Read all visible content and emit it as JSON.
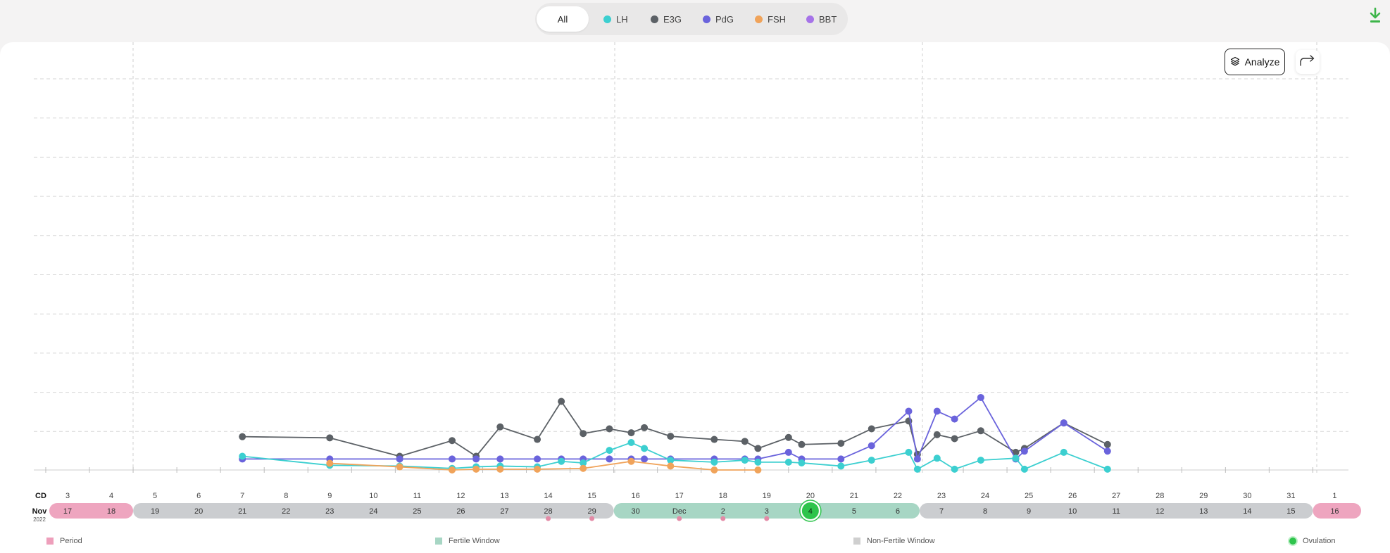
{
  "filters": [
    {
      "label": "All",
      "color": null,
      "selected": true
    },
    {
      "label": "LH",
      "color": "#3ccfd0"
    },
    {
      "label": "E3G",
      "color": "#5c6166"
    },
    {
      "label": "PdG",
      "color": "#6a63dc"
    },
    {
      "label": "FSH",
      "color": "#f0a35a"
    },
    {
      "label": "BBT",
      "color": "#a673e8"
    }
  ],
  "toolbar": {
    "analyze_label": "Analyze"
  },
  "icons": {
    "download": "download-icon",
    "analyze": "layers-icon",
    "share": "share-icon"
  },
  "legend": [
    {
      "label": "Period",
      "color": "#ee9fbb"
    },
    {
      "label": "Fertile Window",
      "color": "#a7d6c4"
    },
    {
      "label": "Non-Fertile Window",
      "color": "#cfcfcf"
    },
    {
      "label": "Ovulation",
      "color": "#2ec44c"
    }
  ],
  "chart_data": {
    "type": "line",
    "cycle_label": "CD",
    "month_label": "Nov",
    "year_label": "2022",
    "cycle_days": [
      "3",
      "4",
      "5",
      "6",
      "7",
      "8",
      "9",
      "10",
      "11",
      "12",
      "13",
      "14",
      "15",
      "16",
      "17",
      "18",
      "19",
      "20",
      "21",
      "22",
      "23",
      "24",
      "25",
      "26",
      "27",
      "28",
      "29",
      "30",
      "31",
      "1"
    ],
    "date_labels": [
      "17",
      "18",
      "19",
      "20",
      "21",
      "22",
      "23",
      "24",
      "25",
      "26",
      "27",
      "28",
      "29",
      "30",
      "Dec",
      "2",
      "3",
      "4",
      "5",
      "6",
      "7",
      "8",
      "9",
      "10",
      "11",
      "12",
      "13",
      "14",
      "15",
      "16"
    ],
    "date_phases": [
      "period",
      "period",
      "nonfertile",
      "nonfertile",
      "nonfertile",
      "nonfertile",
      "nonfertile",
      "nonfertile",
      "nonfertile",
      "nonfertile",
      "nonfertile",
      "nonfertile",
      "nonfertile",
      "fertile",
      "fertile",
      "fertile",
      "fertile",
      "fertile",
      "fertile",
      "fertile",
      "nonfertile",
      "nonfertile",
      "nonfertile",
      "nonfertile",
      "nonfertile",
      "nonfertile",
      "nonfertile",
      "nonfertile",
      "nonfertile",
      "period"
    ],
    "ovulation_index": 17,
    "markers": [
      11,
      12,
      14,
      15,
      16
    ],
    "x_range": [
      0,
      29
    ],
    "y_range": [
      0,
      10
    ],
    "grid": true,
    "series": [
      {
        "name": "E3G",
        "color": "#5c6166",
        "points": [
          [
            4,
            0.85
          ],
          [
            6,
            0.82
          ],
          [
            7.6,
            0.35
          ],
          [
            8.8,
            0.75
          ],
          [
            9.35,
            0.35
          ],
          [
            9.9,
            1.1
          ],
          [
            10.75,
            0.78
          ],
          [
            11.3,
            1.75
          ],
          [
            11.8,
            0.93
          ],
          [
            12.4,
            1.05
          ],
          [
            12.9,
            0.95
          ],
          [
            13.2,
            1.08
          ],
          [
            13.8,
            0.86
          ],
          [
            14.8,
            0.78
          ],
          [
            15.5,
            0.73
          ],
          [
            15.8,
            0.55
          ],
          [
            16.5,
            0.83
          ],
          [
            16.8,
            0.65
          ],
          [
            17.7,
            0.68
          ],
          [
            18.4,
            1.05
          ],
          [
            19.25,
            1.25
          ],
          [
            19.45,
            0.4
          ],
          [
            19.9,
            0.9
          ],
          [
            20.3,
            0.8
          ],
          [
            20.9,
            1.0
          ],
          [
            21.7,
            0.45
          ],
          [
            21.9,
            0.55
          ],
          [
            22.8,
            1.2
          ],
          [
            23.8,
            0.65
          ]
        ]
      },
      {
        "name": "PdG",
        "color": "#6a63dc",
        "points": [
          [
            4,
            0.28
          ],
          [
            6,
            0.28
          ],
          [
            7.6,
            0.28
          ],
          [
            8.8,
            0.28
          ],
          [
            9.35,
            0.28
          ],
          [
            9.9,
            0.28
          ],
          [
            10.75,
            0.28
          ],
          [
            11.3,
            0.28
          ],
          [
            11.8,
            0.28
          ],
          [
            12.4,
            0.28
          ],
          [
            12.9,
            0.28
          ],
          [
            13.2,
            0.28
          ],
          [
            13.8,
            0.28
          ],
          [
            14.8,
            0.28
          ],
          [
            15.5,
            0.28
          ],
          [
            15.8,
            0.28
          ],
          [
            16.5,
            0.45
          ],
          [
            16.8,
            0.28
          ],
          [
            17.7,
            0.28
          ],
          [
            18.4,
            0.62
          ],
          [
            19.25,
            1.5
          ],
          [
            19.45,
            0.28
          ],
          [
            19.9,
            1.5
          ],
          [
            20.3,
            1.3
          ],
          [
            20.9,
            1.85
          ],
          [
            21.7,
            0.28
          ],
          [
            21.9,
            0.48
          ],
          [
            22.8,
            1.2
          ],
          [
            23.8,
            0.48
          ]
        ]
      },
      {
        "name": "LH",
        "color": "#3ccfd0",
        "points": [
          [
            4,
            0.35
          ],
          [
            6,
            0.12
          ],
          [
            7.6,
            0.1
          ],
          [
            8.8,
            0.04
          ],
          [
            9.35,
            0.08
          ],
          [
            9.9,
            0.1
          ],
          [
            10.75,
            0.08
          ],
          [
            11.3,
            0.22
          ],
          [
            11.8,
            0.18
          ],
          [
            12.4,
            0.5
          ],
          [
            12.9,
            0.7
          ],
          [
            13.2,
            0.55
          ],
          [
            13.8,
            0.25
          ],
          [
            14.8,
            0.2
          ],
          [
            15.5,
            0.25
          ],
          [
            15.8,
            0.2
          ],
          [
            16.5,
            0.2
          ],
          [
            16.8,
            0.18
          ],
          [
            17.7,
            0.1
          ],
          [
            18.4,
            0.25
          ],
          [
            19.25,
            0.45
          ],
          [
            19.45,
            0.02
          ],
          [
            19.9,
            0.3
          ],
          [
            20.3,
            0.02
          ],
          [
            20.9,
            0.25
          ],
          [
            21.7,
            0.3
          ],
          [
            21.9,
            0.02
          ],
          [
            22.8,
            0.45
          ],
          [
            23.8,
            0.02
          ]
        ]
      },
      {
        "name": "FSH",
        "color": "#f0a35a",
        "points": [
          [
            6,
            0.17
          ],
          [
            7.6,
            0.08
          ],
          [
            8.8,
            0.0
          ],
          [
            9.35,
            0.02
          ],
          [
            9.9,
            0.02
          ],
          [
            10.75,
            0.02
          ],
          [
            11.8,
            0.04
          ],
          [
            12.9,
            0.22
          ],
          [
            13.8,
            0.1
          ],
          [
            14.8,
            0.0
          ],
          [
            15.8,
            0.0
          ]
        ]
      }
    ]
  }
}
